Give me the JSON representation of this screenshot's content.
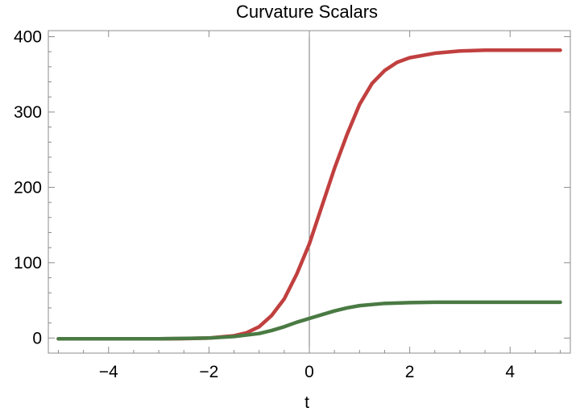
{
  "chart_data": {
    "type": "line",
    "title": "Curvature Scalars",
    "xlabel": "t",
    "ylabel": "",
    "xlim": [
      -5.2,
      5.2
    ],
    "ylim": [
      -20,
      408
    ],
    "x_ticks": [
      -4,
      -2,
      0,
      2,
      4
    ],
    "x_tick_labels": [
      "−4",
      "−2",
      "0",
      "2",
      "4"
    ],
    "y_ticks": [
      0,
      100,
      200,
      300,
      400
    ],
    "y_tick_labels": [
      "0",
      "100",
      "200",
      "300",
      "400"
    ],
    "grid": false,
    "legend": "none",
    "series": [
      {
        "color": "#c0403f",
        "x": [
          -5,
          -4,
          -3,
          -2.5,
          -2,
          -1.75,
          -1.5,
          -1.25,
          -1,
          -0.75,
          -0.5,
          -0.25,
          0,
          0.25,
          0.5,
          0.75,
          1,
          1.25,
          1.5,
          1.75,
          2,
          2.5,
          3,
          3.5,
          4,
          4.5,
          5
        ],
        "values": [
          -1,
          -1,
          -1,
          -0.8,
          0,
          1.5,
          3,
          7,
          15,
          30,
          52,
          85,
          125,
          175,
          225,
          270,
          310,
          338,
          355,
          366,
          372,
          378,
          381,
          382,
          382,
          382,
          382
        ]
      },
      {
        "color": "#4a7a43",
        "x": [
          -5,
          -4,
          -3,
          -2,
          -1.5,
          -1,
          -0.75,
          -0.5,
          -0.25,
          0,
          0.25,
          0.5,
          0.75,
          1,
          1.5,
          2,
          2.5,
          3,
          4,
          5
        ],
        "values": [
          -1,
          -1,
          -1,
          0,
          2,
          6,
          10,
          15,
          21,
          26,
          31,
          36,
          40,
          43,
          46,
          47,
          47.5,
          47.5,
          47.5,
          47.5
        ]
      }
    ]
  }
}
